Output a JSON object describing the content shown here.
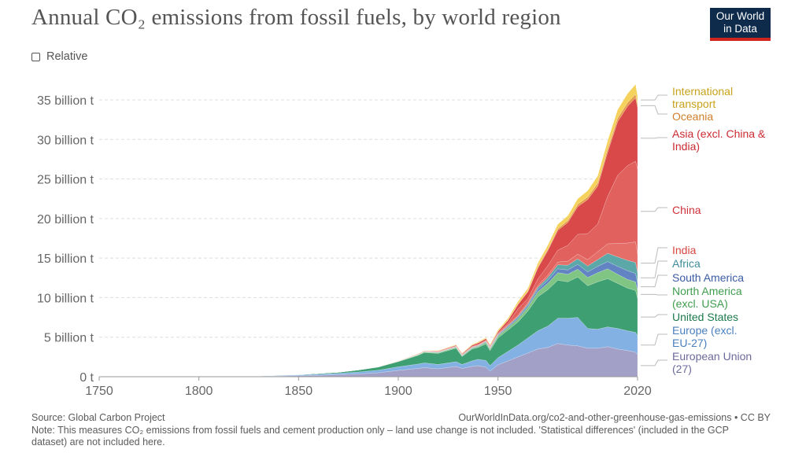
{
  "title": "Annual CO₂ emissions from fossil fuels, by world region",
  "logo": {
    "line1": "Our World",
    "line2": "in Data"
  },
  "relative_toggle": {
    "label": "Relative",
    "checked": false
  },
  "footer": {
    "source": "Source: Global Carbon Project",
    "url": "OurWorldInData.org/co2-and-other-greenhouse-gas-emissions • CC BY",
    "note": "Note: This measures CO₂ emissions from fossil fuels and cement production only – land use change is not included. 'Statistical differences' (included in the GCP dataset) are not included here."
  },
  "chart_data": {
    "type": "area",
    "stacked": true,
    "title": "Annual CO₂ emissions from fossil fuels, by world region",
    "xlim": [
      1750,
      2020
    ],
    "ylim": [
      0,
      35000000000
    ],
    "x_ticks": [
      1750,
      1800,
      1850,
      1900,
      1950,
      2020
    ],
    "y_ticks": [
      {
        "value": 0,
        "label": "0 t"
      },
      {
        "value": 5,
        "label": "5 billion t"
      },
      {
        "value": 10,
        "label": "10 billion t"
      },
      {
        "value": 15,
        "label": "15 billion t"
      },
      {
        "value": 20,
        "label": "20 billion t"
      },
      {
        "value": 25,
        "label": "25 billion t"
      },
      {
        "value": 30,
        "label": "30 billion t"
      },
      {
        "value": 35,
        "label": "35 billion t"
      }
    ],
    "unit": "billion t",
    "grid": "horizontal dashed",
    "x": [
      1750,
      1800,
      1830,
      1850,
      1870,
      1880,
      1890,
      1900,
      1910,
      1913,
      1920,
      1929,
      1932,
      1937,
      1940,
      1944,
      1946,
      1950,
      1955,
      1960,
      1965,
      1970,
      1975,
      1980,
      1985,
      1990,
      1995,
      2000,
      2005,
      2010,
      2015,
      2019,
      2020
    ],
    "series": [
      {
        "name": "European Union (27)",
        "color": "#a2a0c7",
        "values": [
          0.01,
          0.02,
          0.05,
          0.12,
          0.25,
          0.35,
          0.5,
          0.8,
          1.05,
          1.15,
          1.0,
          1.3,
          1.05,
          1.3,
          1.4,
          1.2,
          0.7,
          1.5,
          2.0,
          2.5,
          3.0,
          3.5,
          3.7,
          4.2,
          4.0,
          3.9,
          3.6,
          3.6,
          3.8,
          3.5,
          3.3,
          3.1,
          2.8
        ]
      },
      {
        "name": "Europe (excl. EU-27)",
        "color": "#84b1e3",
        "values": [
          0.0,
          0.01,
          0.04,
          0.1,
          0.18,
          0.25,
          0.32,
          0.45,
          0.55,
          0.6,
          0.55,
          0.6,
          0.5,
          0.7,
          0.8,
          0.85,
          0.7,
          0.9,
          1.2,
          1.5,
          1.9,
          2.3,
          2.7,
          3.2,
          3.4,
          3.6,
          2.5,
          2.4,
          2.5,
          2.6,
          2.5,
          2.5,
          2.4
        ]
      },
      {
        "name": "United States",
        "color": "#3e9f72",
        "values": [
          0.0,
          0.0,
          0.01,
          0.05,
          0.13,
          0.25,
          0.4,
          0.66,
          1.1,
          1.3,
          1.4,
          1.7,
          1.0,
          1.5,
          1.5,
          2.1,
          1.9,
          2.5,
          2.7,
          2.9,
          3.4,
          4.3,
          4.6,
          4.8,
          4.6,
          5.1,
          5.4,
          6.0,
          6.1,
          5.7,
          5.4,
          5.3,
          4.7
        ]
      },
      {
        "name": "North America (excl. USA)",
        "color": "#80c584",
        "values": [
          0.0,
          0.0,
          0.0,
          0.0,
          0.01,
          0.01,
          0.02,
          0.03,
          0.07,
          0.09,
          0.1,
          0.12,
          0.09,
          0.12,
          0.13,
          0.2,
          0.2,
          0.25,
          0.3,
          0.4,
          0.5,
          0.65,
          0.8,
          0.95,
          0.95,
          1.0,
          1.05,
          1.15,
          1.25,
          1.15,
          1.1,
          1.1,
          1.0
        ]
      },
      {
        "name": "South America",
        "color": "#6384c3",
        "values": [
          0.0,
          0.0,
          0.0,
          0.0,
          0.0,
          0.0,
          0.0,
          0.01,
          0.02,
          0.02,
          0.03,
          0.04,
          0.04,
          0.05,
          0.06,
          0.07,
          0.08,
          0.1,
          0.14,
          0.18,
          0.22,
          0.3,
          0.4,
          0.5,
          0.55,
          0.6,
          0.7,
          0.8,
          0.9,
          1.0,
          1.1,
          1.05,
          0.95
        ]
      },
      {
        "name": "Africa",
        "color": "#5ca8a8",
        "values": [
          0.0,
          0.0,
          0.0,
          0.0,
          0.0,
          0.0,
          0.0,
          0.01,
          0.02,
          0.02,
          0.03,
          0.04,
          0.04,
          0.05,
          0.05,
          0.06,
          0.07,
          0.08,
          0.1,
          0.13,
          0.17,
          0.25,
          0.35,
          0.5,
          0.6,
          0.7,
          0.75,
          0.85,
          1.05,
          1.2,
          1.3,
          1.4,
          1.3
        ]
      },
      {
        "name": "India",
        "color": "#e56e68",
        "values": [
          0.0,
          0.0,
          0.0,
          0.0,
          0.0,
          0.0,
          0.0,
          0.02,
          0.03,
          0.03,
          0.04,
          0.05,
          0.05,
          0.06,
          0.07,
          0.08,
          0.08,
          0.1,
          0.12,
          0.15,
          0.2,
          0.25,
          0.3,
          0.35,
          0.5,
          0.6,
          0.8,
          1.0,
          1.2,
          1.7,
          2.2,
          2.6,
          2.4
        ]
      },
      {
        "name": "China",
        "color": "#e0615d",
        "values": [
          0.0,
          0.0,
          0.0,
          0.0,
          0.0,
          0.0,
          0.0,
          0.0,
          0.01,
          0.01,
          0.02,
          0.03,
          0.03,
          0.04,
          0.05,
          0.05,
          0.06,
          0.08,
          0.2,
          0.8,
          0.5,
          0.8,
          1.2,
          1.5,
          2.0,
          2.5,
          3.3,
          3.5,
          6.0,
          8.6,
          9.8,
          10.2,
          10.7
        ]
      },
      {
        "name": "Asia (excl. China & India)",
        "color": "#d9494a",
        "values": [
          0.0,
          0.0,
          0.0,
          0.0,
          0.0,
          0.0,
          0.01,
          0.02,
          0.04,
          0.05,
          0.07,
          0.1,
          0.09,
          0.15,
          0.2,
          0.2,
          0.12,
          0.2,
          0.35,
          0.55,
          0.85,
          1.4,
          1.9,
          2.5,
          2.9,
          3.5,
          4.3,
          4.8,
          5.6,
          6.8,
          7.5,
          8.0,
          7.8
        ]
      },
      {
        "name": "Oceania",
        "color": "#e49b4a",
        "values": [
          0.0,
          0.0,
          0.0,
          0.0,
          0.0,
          0.0,
          0.01,
          0.01,
          0.02,
          0.02,
          0.02,
          0.03,
          0.03,
          0.03,
          0.04,
          0.04,
          0.05,
          0.05,
          0.07,
          0.09,
          0.1,
          0.15,
          0.18,
          0.22,
          0.25,
          0.3,
          0.32,
          0.38,
          0.42,
          0.45,
          0.45,
          0.46,
          0.44
        ]
      },
      {
        "name": "International transport",
        "color": "#f5d25c",
        "values": [
          0.0,
          0.0,
          0.0,
          0.0,
          0.0,
          0.0,
          0.0,
          0.01,
          0.02,
          0.02,
          0.04,
          0.06,
          0.06,
          0.08,
          0.1,
          0.1,
          0.12,
          0.15,
          0.2,
          0.3,
          0.35,
          0.45,
          0.5,
          0.55,
          0.6,
          0.7,
          0.8,
          0.9,
          1.0,
          1.05,
          1.15,
          1.25,
          1.0
        ]
      }
    ],
    "legend": {
      "placement": "right",
      "labels": [
        {
          "series": "International transport",
          "lines": [
            "International",
            "transport"
          ],
          "color": "#c8a21b"
        },
        {
          "series": "Oceania",
          "lines": [
            "Oceania"
          ],
          "color": "#d07f2b"
        },
        {
          "series": "Asia (excl. China & India)",
          "lines": [
            "Asia (excl. China &",
            "India)"
          ],
          "color": "#cc2b33"
        },
        {
          "series": "China",
          "lines": [
            "China"
          ],
          "color": "#d1323a"
        },
        {
          "series": "India",
          "lines": [
            "India"
          ],
          "color": "#d8463f"
        },
        {
          "series": "Africa",
          "lines": [
            "Africa"
          ],
          "color": "#3e8d9a"
        },
        {
          "series": "South America",
          "lines": [
            "South America"
          ],
          "color": "#3b5aa5"
        },
        {
          "series": "North America (excl. USA)",
          "lines": [
            "North America",
            "(excl. USA)"
          ],
          "color": "#3f9d4e"
        },
        {
          "series": "United States",
          "lines": [
            "United States"
          ],
          "color": "#1d7a4c"
        },
        {
          "series": "Europe (excl. EU-27)",
          "lines": [
            "Europe (excl.",
            "EU-27)"
          ],
          "color": "#4a7fc0"
        },
        {
          "series": "European Union (27)",
          "lines": [
            "European Union",
            "(27)"
          ],
          "color": "#6c6a9c"
        }
      ]
    }
  }
}
